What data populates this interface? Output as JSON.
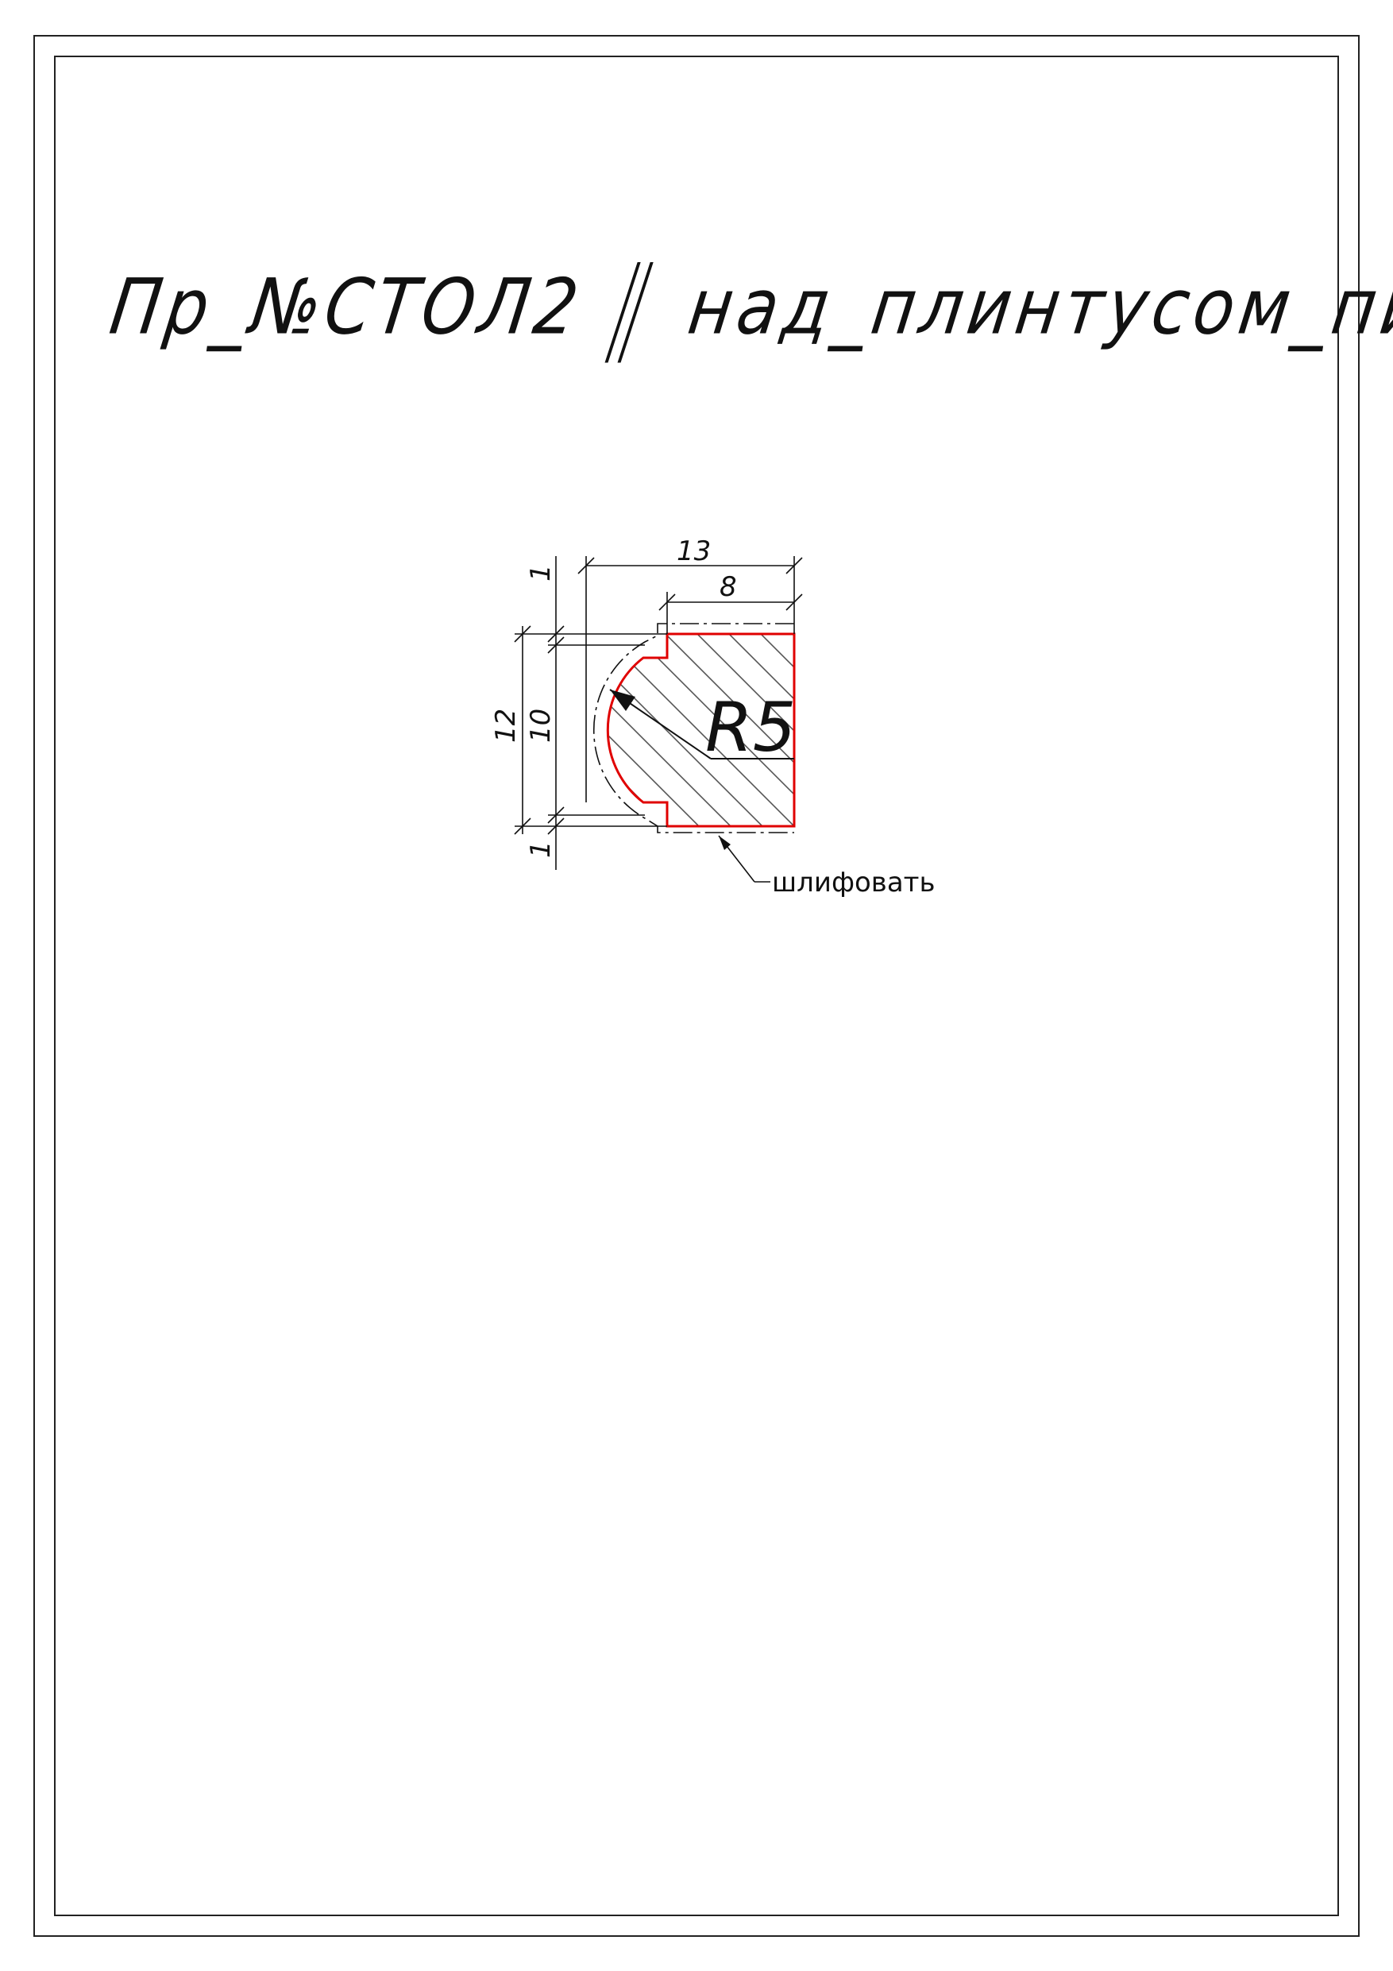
{
  "title": {
    "part_number": "Пр_№СТОЛ2",
    "description": "над_плинтусом_пилястры"
  },
  "drawing": {
    "dimensions": {
      "width_total": "13",
      "width_flat": "8",
      "height_total": "12",
      "height_inner": "10",
      "offset_top": "1",
      "offset_bottom": "1"
    },
    "radius_label": "R5",
    "note": "шлифовать",
    "colors": {
      "outline": "#e00000",
      "lines": "#111111",
      "hatch": "#555555"
    }
  }
}
